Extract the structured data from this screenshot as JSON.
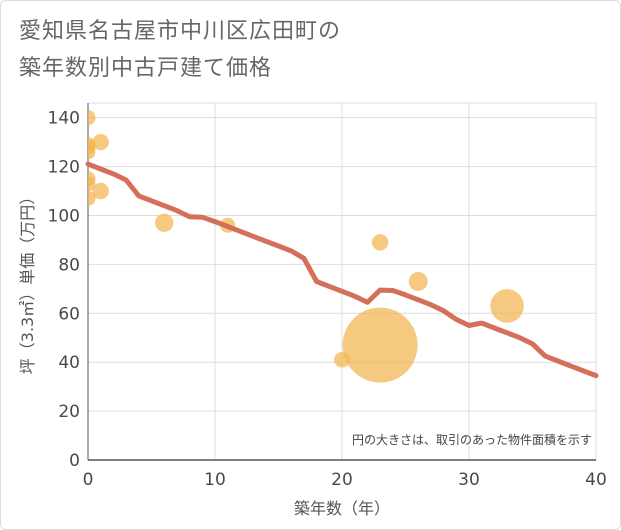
{
  "chart_data": {
    "type": "scatter",
    "title_lines": [
      "愛知県名古屋市中川区広田町の",
      "築年数別中古戸建て価格"
    ],
    "xlabel": "築年数（年）",
    "ylabel": "坪（3.3㎡）単価（万円）",
    "xlim": [
      0,
      40
    ],
    "ylim": [
      0,
      146
    ],
    "xticks": [
      0,
      10,
      20,
      30,
      40
    ],
    "yticks": [
      0,
      20,
      40,
      60,
      80,
      100,
      120,
      140
    ],
    "grid": true,
    "note": "円の大きさは、取引のあった物件面積を示す",
    "bubble_color": "#f2b44f",
    "line_color": "#d4705a",
    "points": [
      {
        "x": 0,
        "y": 140,
        "size": 1
      },
      {
        "x": 0,
        "y": 129,
        "size": 1
      },
      {
        "x": 0,
        "y": 128,
        "size": 1
      },
      {
        "x": 0,
        "y": 126,
        "size": 1
      },
      {
        "x": 0,
        "y": 115,
        "size": 1
      },
      {
        "x": 0,
        "y": 113,
        "size": 1
      },
      {
        "x": 0,
        "y": 107,
        "size": 1
      },
      {
        "x": 1,
        "y": 130,
        "size": 1.2
      },
      {
        "x": 1,
        "y": 110,
        "size": 1.2
      },
      {
        "x": 6,
        "y": 97,
        "size": 1.5
      },
      {
        "x": 11,
        "y": 96,
        "size": 1.0
      },
      {
        "x": 20,
        "y": 41,
        "size": 1.1
      },
      {
        "x": 23,
        "y": 89,
        "size": 1.2
      },
      {
        "x": 23,
        "y": 47,
        "size": 25
      },
      {
        "x": 26,
        "y": 73,
        "size": 1.6
      },
      {
        "x": 33,
        "y": 63,
        "size": 5.0
      }
    ],
    "trend": {
      "x": [
        0,
        1,
        2,
        3,
        4,
        5,
        6,
        7,
        8,
        9,
        10,
        11,
        12,
        13,
        14,
        15,
        16,
        17,
        18,
        19,
        20,
        21,
        22,
        23,
        24,
        25,
        26,
        27,
        28,
        29,
        30,
        31,
        32,
        33,
        34,
        35,
        36,
        37,
        38,
        39,
        40
      ],
      "y": [
        121,
        119,
        117,
        114.5,
        108,
        106,
        104,
        102,
        99.5,
        99.3,
        97.5,
        95.5,
        93.5,
        91.5,
        89.5,
        87.5,
        85.5,
        82.5,
        73,
        71,
        69,
        67,
        64.5,
        69.5,
        69.3,
        67.5,
        65.5,
        63.5,
        61,
        57.5,
        55,
        56,
        54,
        52,
        50,
        47.5,
        42.5,
        40.5,
        38.5,
        36.5,
        34.5
      ]
    }
  }
}
